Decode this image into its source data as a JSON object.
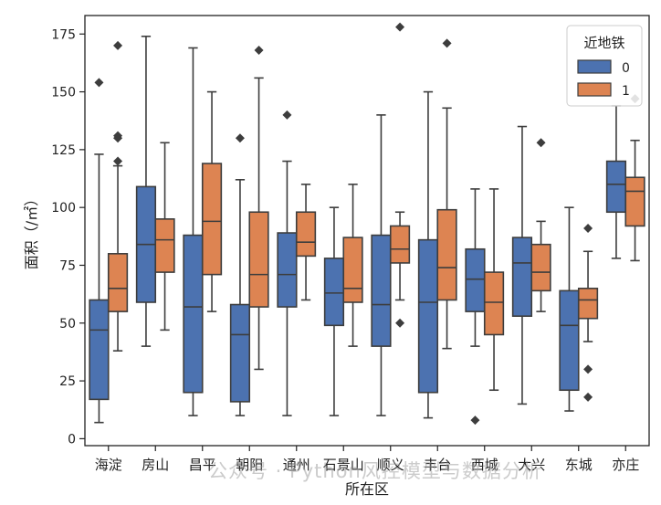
{
  "colors": {
    "series0": "#4c72b0",
    "series1": "#dd8452",
    "line": "#3d3d3d",
    "background": "#ffffff"
  },
  "watermark": "公众号 · Python风控模型与数据分析",
  "chart_data": {
    "type": "boxplot",
    "title": "",
    "xlabel": "所在区",
    "ylabel": "面积（/㎡）",
    "ylim": [
      -3,
      183
    ],
    "yticks": [
      0,
      25,
      50,
      75,
      100,
      125,
      150,
      175
    ],
    "categories": [
      "海淀",
      "房山",
      "昌平",
      "朝阳",
      "通州",
      "石景山",
      "顺义",
      "丰台",
      "西城",
      "大兴",
      "东城",
      "亦庄"
    ],
    "legend": {
      "title": "近地铁",
      "position": "top-right",
      "labels": [
        "0",
        "1"
      ]
    },
    "series": [
      {
        "name": "0",
        "boxes": [
          {
            "whislo": 7,
            "q1": 17,
            "med": 47,
            "q3": 60,
            "whishi": 123,
            "fliers": [
              154
            ]
          },
          {
            "whislo": 40,
            "q1": 59,
            "med": 84,
            "q3": 109,
            "whishi": 174,
            "fliers": []
          },
          {
            "whislo": 10,
            "q1": 20,
            "med": 57,
            "q3": 88,
            "whishi": 169,
            "fliers": []
          },
          {
            "whislo": 10,
            "q1": 16,
            "med": 45,
            "q3": 58,
            "whishi": 112,
            "fliers": [
              130
            ]
          },
          {
            "whislo": 10,
            "q1": 57,
            "med": 71,
            "q3": 89,
            "whishi": 120,
            "fliers": [
              140
            ]
          },
          {
            "whislo": 10,
            "q1": 49,
            "med": 63,
            "q3": 78,
            "whishi": 100,
            "fliers": []
          },
          {
            "whislo": 10,
            "q1": 40,
            "med": 58,
            "q3": 88,
            "whishi": 140,
            "fliers": []
          },
          {
            "whislo": 9,
            "q1": 20,
            "med": 59,
            "q3": 86,
            "whishi": 150,
            "fliers": []
          },
          {
            "whislo": 40,
            "q1": 55,
            "med": 69,
            "q3": 82,
            "whishi": 108,
            "fliers": [
              8
            ]
          },
          {
            "whislo": 15,
            "q1": 53,
            "med": 76,
            "q3": 87,
            "whishi": 135,
            "fliers": []
          },
          {
            "whislo": 12,
            "q1": 21,
            "med": 49,
            "q3": 64,
            "whishi": 100,
            "fliers": []
          },
          {
            "whislo": 78,
            "q1": 98,
            "med": 110,
            "q3": 120,
            "whishi": 144,
            "fliers": []
          }
        ]
      },
      {
        "name": "1",
        "boxes": [
          {
            "whislo": 38,
            "q1": 55,
            "med": 65,
            "q3": 80,
            "whishi": 118,
            "fliers": [
              120,
              130,
              131,
              170
            ]
          },
          {
            "whislo": 47,
            "q1": 72,
            "med": 86,
            "q3": 95,
            "whishi": 128,
            "fliers": []
          },
          {
            "whislo": 55,
            "q1": 71,
            "med": 94,
            "q3": 119,
            "whishi": 150,
            "fliers": []
          },
          {
            "whislo": 30,
            "q1": 57,
            "med": 71,
            "q3": 98,
            "whishi": 156,
            "fliers": [
              168
            ]
          },
          {
            "whislo": 60,
            "q1": 79,
            "med": 85,
            "q3": 98,
            "whishi": 110,
            "fliers": []
          },
          {
            "whislo": 40,
            "q1": 59,
            "med": 65,
            "q3": 87,
            "whishi": 110,
            "fliers": []
          },
          {
            "whislo": 60,
            "q1": 76,
            "med": 82,
            "q3": 92,
            "whishi": 98,
            "fliers": [
              178,
              50
            ]
          },
          {
            "whislo": 39,
            "q1": 60,
            "med": 74,
            "q3": 99,
            "whishi": 143,
            "fliers": [
              171
            ]
          },
          {
            "whislo": 21,
            "q1": 45,
            "med": 59,
            "q3": 72,
            "whishi": 108,
            "fliers": []
          },
          {
            "whislo": 55,
            "q1": 64,
            "med": 72,
            "q3": 84,
            "whishi": 94,
            "fliers": [
              128
            ]
          },
          {
            "whislo": 42,
            "q1": 52,
            "med": 60,
            "q3": 65,
            "whishi": 81,
            "fliers": [
              91,
              30,
              18
            ]
          },
          {
            "whislo": 77,
            "q1": 92,
            "med": 107,
            "q3": 113,
            "whishi": 129,
            "fliers": [
              147
            ]
          }
        ]
      }
    ]
  }
}
